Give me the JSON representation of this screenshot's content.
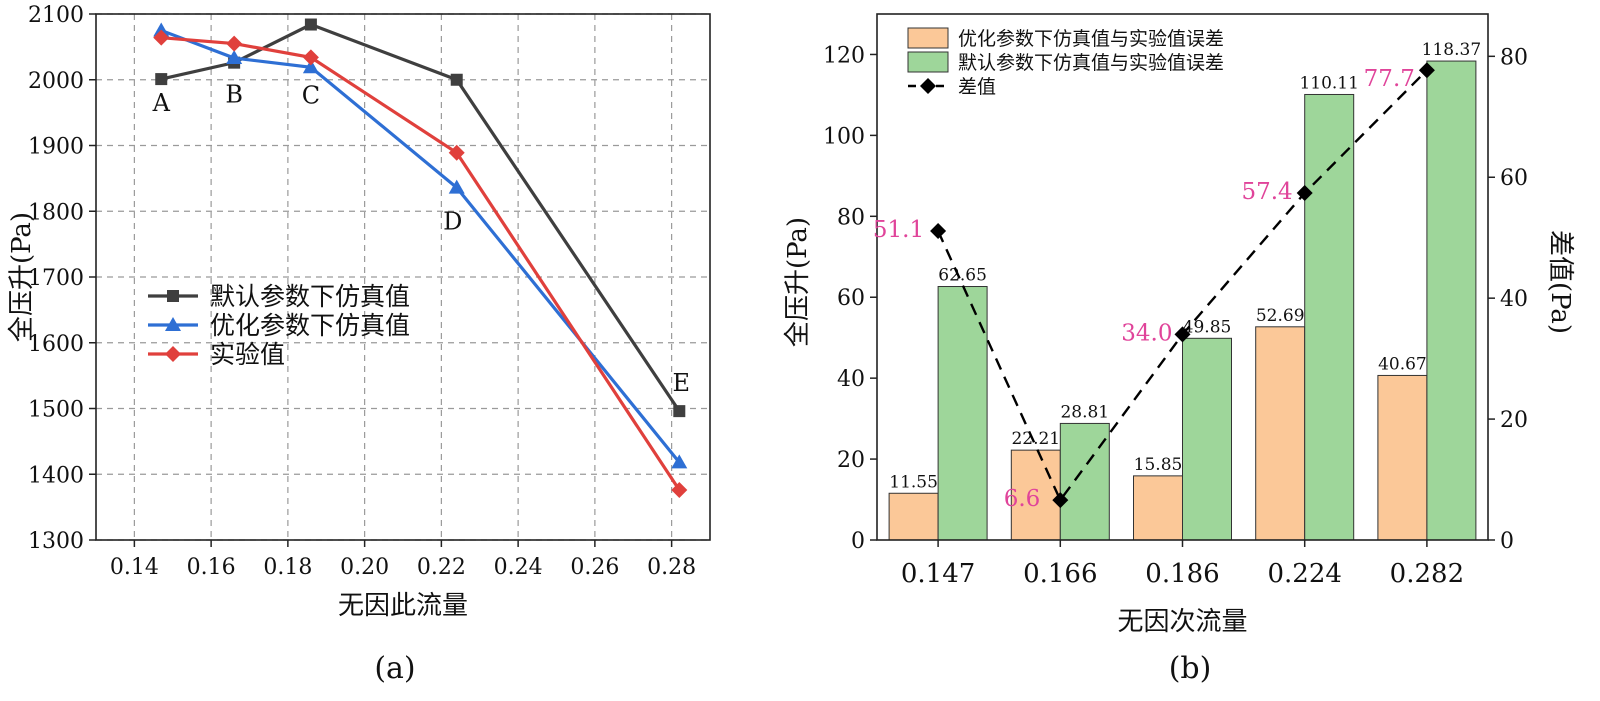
{
  "chart_data": [
    {
      "type": "line",
      "panel": "(a)",
      "xlabel": "无因此流量",
      "ylabel": "全压升(Pa)",
      "xlim": [
        0.13,
        0.29
      ],
      "ylim": [
        1300,
        2100
      ],
      "xticks": [
        "0.14",
        "0.16",
        "0.18",
        "0.20",
        "0.22",
        "0.24",
        "0.26",
        "0.28"
      ],
      "yticks": [
        "1300",
        "1400",
        "1500",
        "1600",
        "1700",
        "1800",
        "1900",
        "2000",
        "2100"
      ],
      "x": [
        0.147,
        0.166,
        0.186,
        0.224,
        0.282
      ],
      "grid": true,
      "legend_position": "center-left",
      "series": [
        {
          "name": "默认参数下仿真值",
          "color": "#3f3f3f",
          "marker": "square",
          "values": [
            2001,
            2026,
            2084,
            2000,
            1496
          ]
        },
        {
          "name": "优化参数下仿真值",
          "color": "#2e6fd4",
          "marker": "triangle",
          "values": [
            2075,
            2033,
            2019,
            1836,
            1418
          ]
        },
        {
          "name": "实验值",
          "color": "#e0403c",
          "marker": "diamond",
          "values": [
            2064,
            2055,
            2034,
            1889,
            1376
          ]
        }
      ],
      "annotations": [
        {
          "text": "A",
          "x": 0.147,
          "y": 2001
        },
        {
          "text": "B",
          "x": 0.166,
          "y": 2026
        },
        {
          "text": "C",
          "x": 0.186,
          "y": 2019
        },
        {
          "text": "D",
          "x": 0.224,
          "y": 1836
        },
        {
          "text": "E",
          "x": 0.282,
          "y": 1496
        }
      ]
    },
    {
      "type": "bar",
      "panel": "(b)",
      "xlabel": "无因次流量",
      "ylabel": "全压升(Pa)",
      "ylabel_right": "差值(Pa)",
      "categories": [
        "0.147",
        "0.166",
        "0.186",
        "0.224",
        "0.282"
      ],
      "ylim": [
        0,
        130
      ],
      "ylim_right": [
        0,
        87
      ],
      "yticks": [
        "0",
        "20",
        "40",
        "60",
        "80",
        "100",
        "120"
      ],
      "yticks_right": [
        "0",
        "20",
        "40",
        "60",
        "80"
      ],
      "legend_position": "top-left",
      "series": [
        {
          "name": "优化参数下仿真值与实验值误差",
          "color": "#fbc898",
          "values": [
            11.55,
            22.21,
            15.85,
            52.69,
            40.67
          ],
          "labels": [
            "11.55",
            "22.21",
            "15.85",
            "52.69",
            "40.67"
          ]
        },
        {
          "name": "默认参数下仿真值与实验值误差",
          "color": "#9ed69a",
          "values": [
            62.65,
            28.81,
            49.85,
            110.11,
            118.37
          ],
          "labels": [
            "62.65",
            "28.81",
            "49.85",
            "110.11",
            "118.37"
          ]
        }
      ],
      "diff_series": {
        "name": "差值",
        "color": "#000000",
        "marker": "diamond",
        "axis": "right",
        "values": [
          51.1,
          6.6,
          34.0,
          57.4,
          77.7
        ],
        "labels": [
          "51.1",
          "6.6",
          "34.0",
          "57.4",
          "77.7"
        ],
        "label_color": "#e0449a"
      }
    }
  ]
}
